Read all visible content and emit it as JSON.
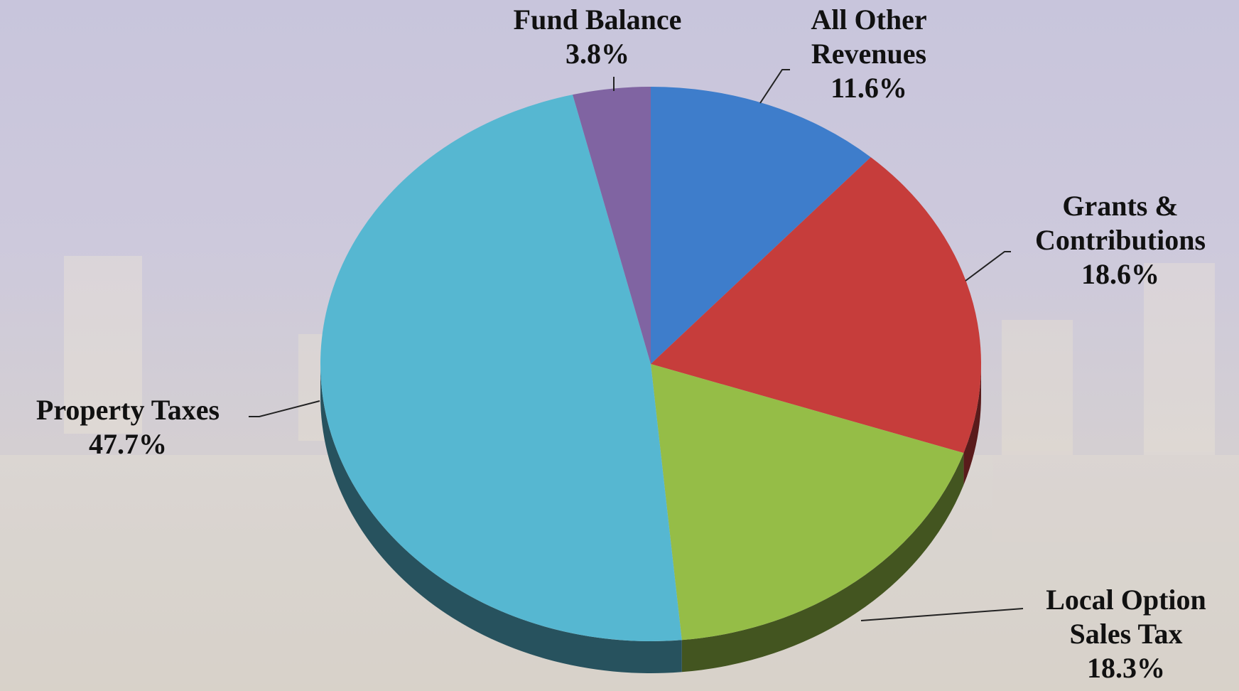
{
  "chart_data": {
    "type": "pie",
    "categories": [
      "All Other Revenues",
      "Grants & Contributions",
      "Local Option Sales Tax",
      "Property Taxes",
      "Fund Balance"
    ],
    "values": [
      11.6,
      18.6,
      18.3,
      47.7,
      3.8
    ],
    "value_labels": [
      "11.6%",
      "18.6%",
      "18.3%",
      "47.7%",
      "3.8%"
    ],
    "colors": [
      "#3e7dcb",
      "#c63d3b",
      "#95bd47",
      "#56b7d1",
      "#8064a2"
    ]
  }
}
